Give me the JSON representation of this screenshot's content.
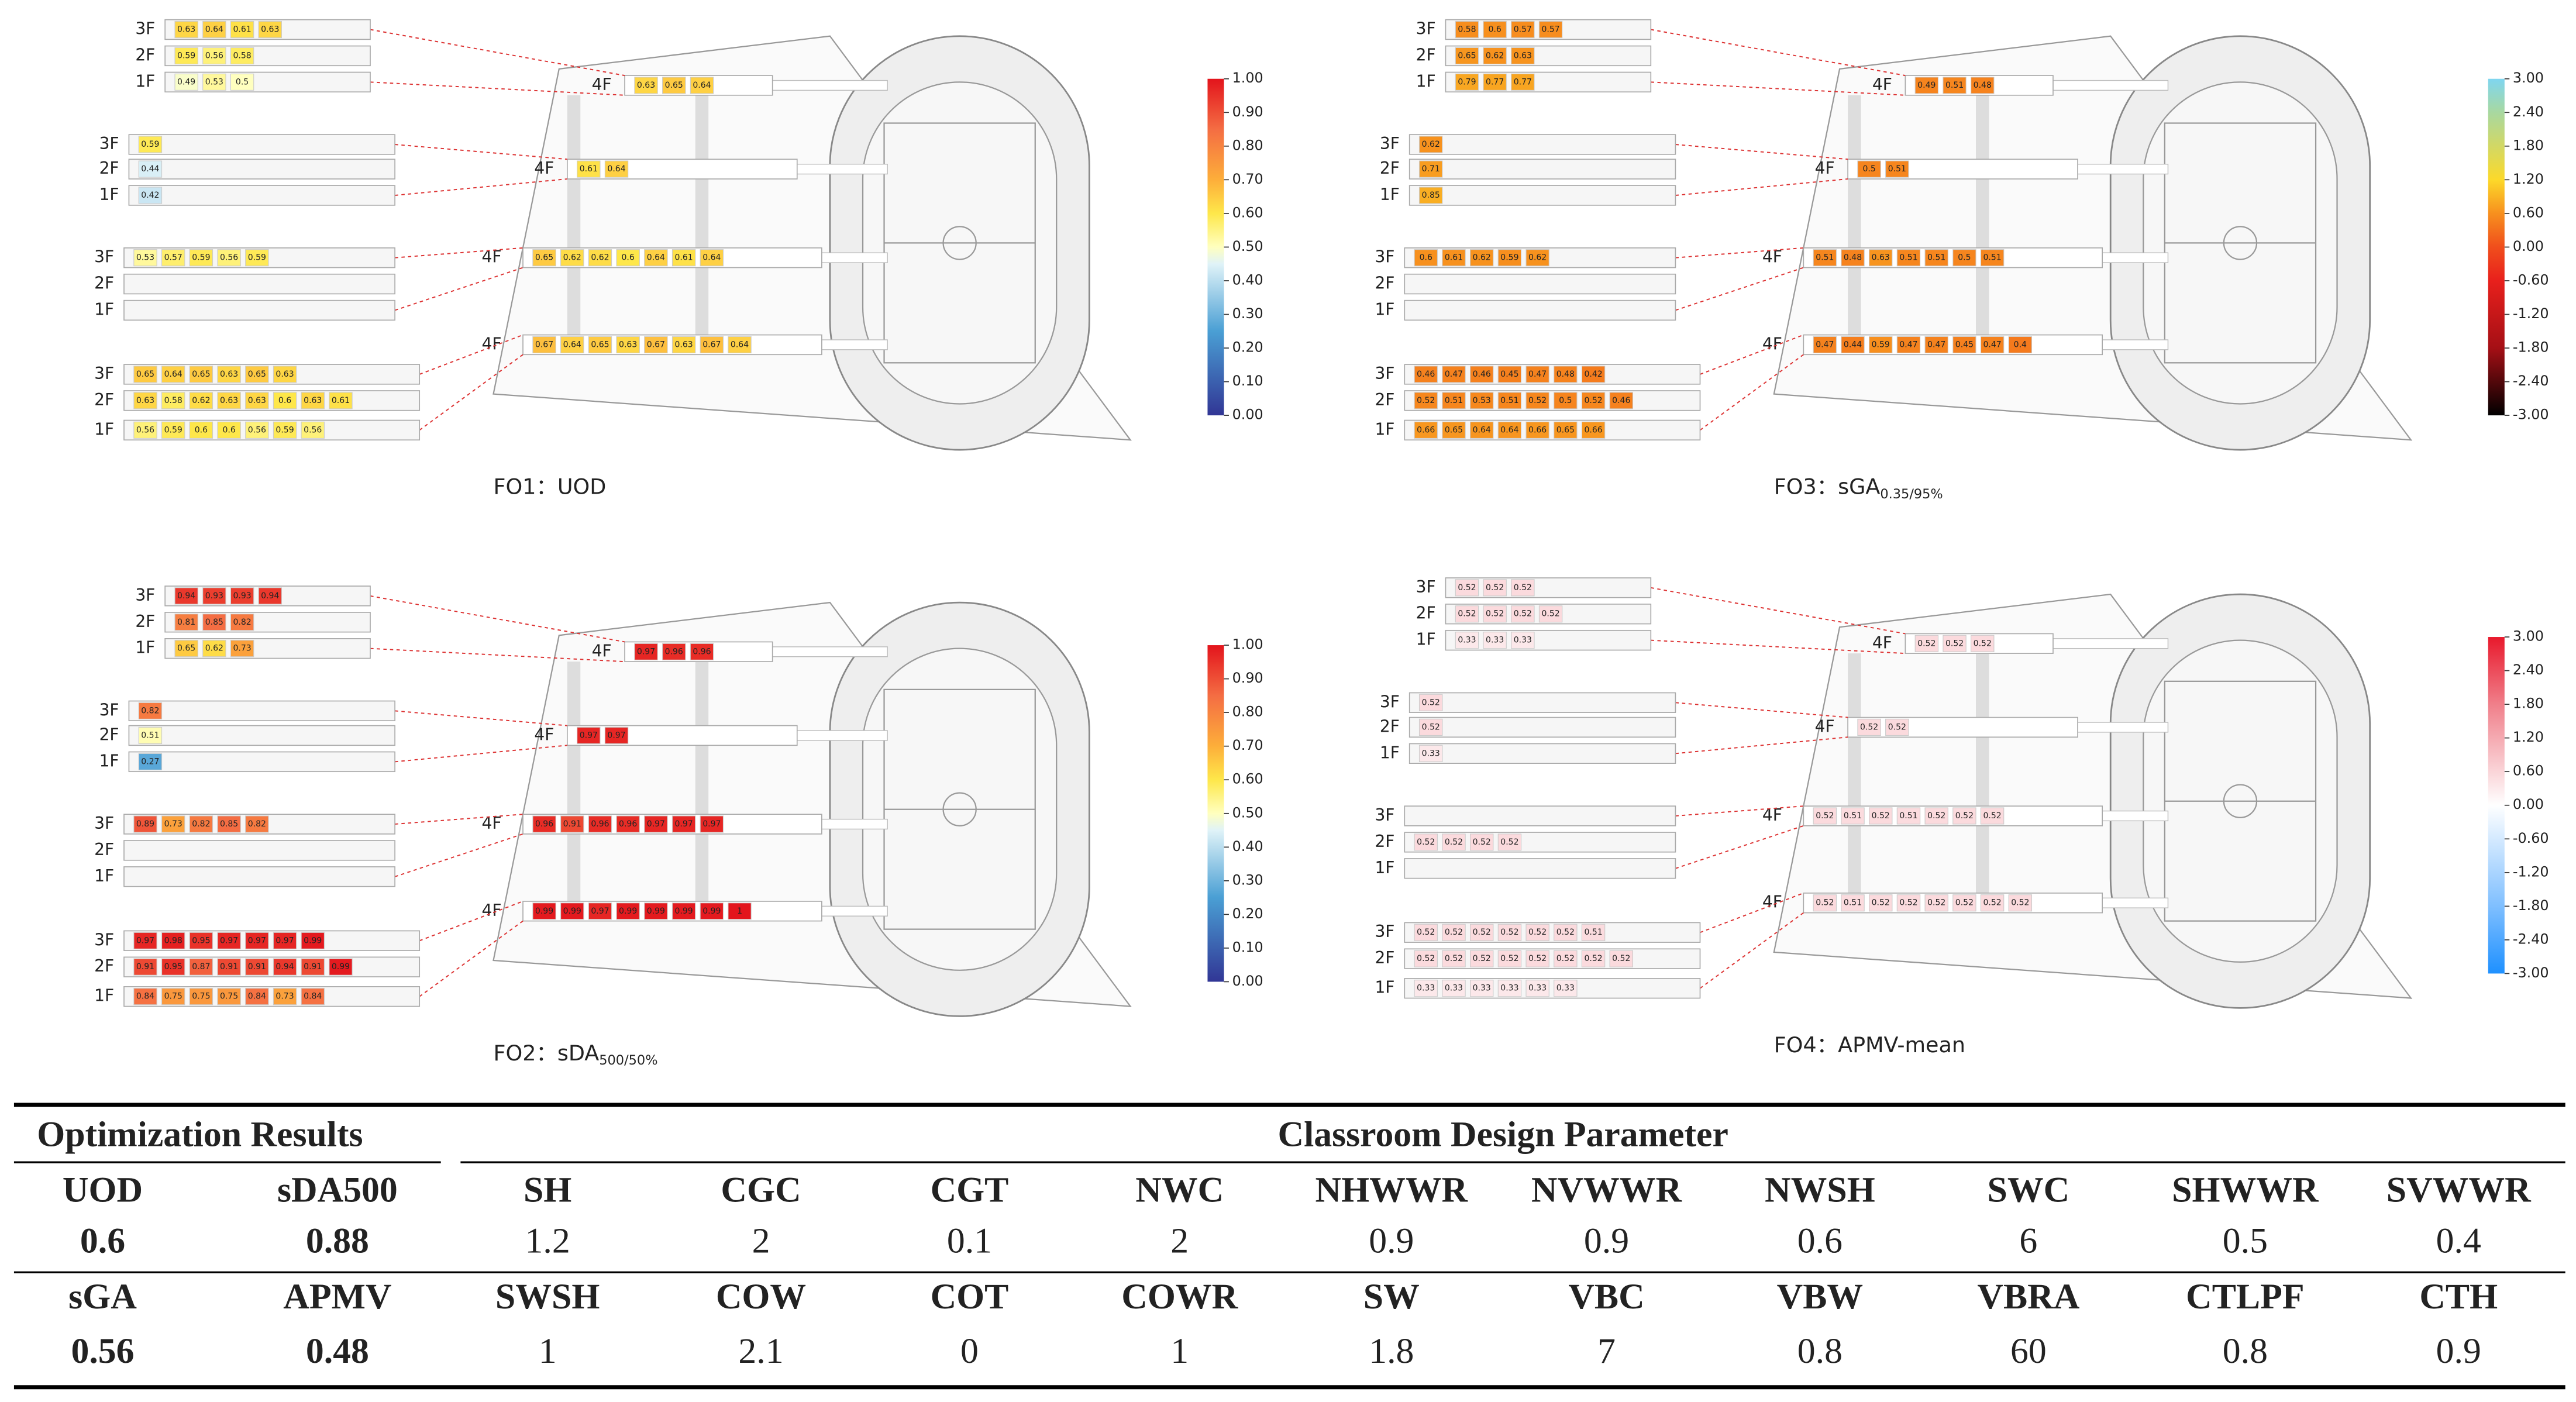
{
  "panels": [
    {
      "title": "FO1：UOD",
      "colormap": "jet",
      "colorbar": [
        "1.00",
        "0.90",
        "0.80",
        "0.70",
        "0.60",
        "0.50",
        "0.40",
        "0.30",
        "0.20",
        "0.10",
        "0.00"
      ],
      "levels": [
        {
          "tag": "4F",
          "main": [
            0.63,
            0.65,
            0.64
          ],
          "inset": [
            {
              "floor": "3F",
              "values": [
                0.63,
                0.64,
                0.61,
                0.63
              ]
            },
            {
              "floor": "2F",
              "values": [
                0.59,
                0.56,
                0.58
              ]
            },
            {
              "floor": "1F",
              "values": [
                0.49,
                0.53,
                0.5
              ]
            }
          ]
        },
        {
          "tag": "4F",
          "main": [
            0.61,
            0.64
          ],
          "inset": [
            {
              "floor": "3F",
              "values": [
                0.59
              ]
            },
            {
              "floor": "2F",
              "values": [
                0.44
              ]
            },
            {
              "floor": "1F",
              "values": [
                0.42
              ]
            }
          ]
        },
        {
          "tag": "4F",
          "main": [
            0.65,
            0.62,
            0.62,
            0.6,
            0.64,
            0.61,
            0.64
          ],
          "inset": [
            {
              "floor": "3F",
              "values": [
                0.53,
                0.57,
                0.59,
                0.56,
                0.59
              ]
            },
            {
              "floor": "2F",
              "values": []
            },
            {
              "floor": "1F",
              "values": []
            }
          ]
        },
        {
          "tag": "4F",
          "main": [
            0.67,
            0.64,
            0.65,
            0.63,
            0.67,
            0.63,
            0.67,
            0.64
          ],
          "inset": [
            {
              "floor": "3F",
              "values": [
                0.65,
                0.64,
                0.65,
                0.63,
                0.65,
                0.63
              ]
            },
            {
              "floor": "2F",
              "values": [
                0.63,
                0.58,
                0.62,
                0.63,
                0.63,
                0.6,
                0.63,
                0.61
              ]
            },
            {
              "floor": "1F",
              "values": [
                0.56,
                0.59,
                0.6,
                0.6,
                0.56,
                0.59,
                0.56
              ]
            }
          ]
        }
      ]
    },
    {
      "title": "FO3：sGA",
      "title_sub": "0.35/95%",
      "colormap": "heat",
      "colorbar": [
        "3.00",
        "2.40",
        "1.80",
        "1.20",
        "0.60",
        "0.00",
        "-0.60",
        "-1.20",
        "-1.80",
        "-2.40",
        "-3.00"
      ],
      "levels": [
        {
          "tag": "4F",
          "main": [
            0.49,
            0.51,
            0.48
          ],
          "inset": [
            {
              "floor": "3F",
              "values": [
                0.58,
                0.6,
                0.57,
                0.57
              ]
            },
            {
              "floor": "2F",
              "values": [
                0.65,
                0.62,
                0.63
              ]
            },
            {
              "floor": "1F",
              "values": [
                0.79,
                0.77,
                0.77
              ]
            }
          ]
        },
        {
          "tag": "4F",
          "main": [
            0.5,
            0.51
          ],
          "inset": [
            {
              "floor": "3F",
              "values": [
                0.62
              ]
            },
            {
              "floor": "2F",
              "values": [
                0.71
              ]
            },
            {
              "floor": "1F",
              "values": [
                0.85
              ]
            }
          ]
        },
        {
          "tag": "4F",
          "main": [
            0.51,
            0.48,
            0.63,
            0.51,
            0.51,
            0.5,
            0.51
          ],
          "inset": [
            {
              "floor": "3F",
              "values": [
                0.6,
                0.61,
                0.62,
                0.59,
                0.62
              ]
            },
            {
              "floor": "2F",
              "values": []
            },
            {
              "floor": "1F",
              "values": []
            }
          ]
        },
        {
          "tag": "4F",
          "main": [
            0.47,
            0.44,
            0.59,
            0.47,
            0.47,
            0.45,
            0.47,
            0.4
          ],
          "inset": [
            {
              "floor": "3F",
              "values": [
                0.46,
                0.47,
                0.46,
                0.45,
                0.47,
                0.48,
                0.42
              ]
            },
            {
              "floor": "2F",
              "values": [
                0.52,
                0.51,
                0.53,
                0.51,
                0.52,
                0.5,
                0.52,
                0.46
              ]
            },
            {
              "floor": "1F",
              "values": [
                0.66,
                0.65,
                0.64,
                0.64,
                0.66,
                0.65,
                0.66
              ]
            }
          ]
        }
      ]
    },
    {
      "title": "FO2：sDA",
      "title_sub": "500/50%",
      "colormap": "jet",
      "colorbar": [
        "1.00",
        "0.90",
        "0.80",
        "0.70",
        "0.60",
        "0.50",
        "0.40",
        "0.30",
        "0.20",
        "0.10",
        "0.00"
      ],
      "levels": [
        {
          "tag": "4F",
          "main": [
            0.97,
            0.96,
            0.96
          ],
          "inset": [
            {
              "floor": "3F",
              "values": [
                0.94,
                0.93,
                0.93,
                0.94
              ]
            },
            {
              "floor": "2F",
              "values": [
                0.81,
                0.85,
                0.82
              ]
            },
            {
              "floor": "1F",
              "values": [
                0.65,
                0.62,
                0.73
              ]
            }
          ]
        },
        {
          "tag": "4F",
          "main": [
            0.97,
            0.97
          ],
          "inset": [
            {
              "floor": "3F",
              "values": [
                0.82
              ]
            },
            {
              "floor": "2F",
              "values": [
                0.51
              ]
            },
            {
              "floor": "1F",
              "values": [
                0.27
              ]
            }
          ]
        },
        {
          "tag": "4F",
          "main": [
            0.96,
            0.91,
            0.96,
            0.96,
            0.97,
            0.97,
            0.97
          ],
          "inset": [
            {
              "floor": "3F",
              "values": [
                0.89,
                0.73,
                0.82,
                0.85,
                0.82
              ]
            },
            {
              "floor": "2F",
              "values": []
            },
            {
              "floor": "1F",
              "values": []
            }
          ]
        },
        {
          "tag": "4F",
          "main": [
            0.99,
            0.99,
            0.97,
            0.99,
            0.99,
            0.99,
            0.99,
            1
          ],
          "inset": [
            {
              "floor": "3F",
              "values": [
                0.97,
                0.98,
                0.95,
                0.97,
                0.97,
                0.97,
                0.99
              ]
            },
            {
              "floor": "2F",
              "values": [
                0.91,
                0.95,
                0.87,
                0.91,
                0.91,
                0.94,
                0.91,
                0.99
              ]
            },
            {
              "floor": "1F",
              "values": [
                0.84,
                0.75,
                0.75,
                0.75,
                0.84,
                0.73,
                0.84
              ]
            }
          ]
        }
      ]
    },
    {
      "title": "FO4：APMV-mean",
      "colormap": "diverging",
      "colorbar": [
        "3.00",
        "2.40",
        "1.80",
        "1.20",
        "0.60",
        "0.00",
        "-0.60",
        "-1.20",
        "-1.80",
        "-2.40",
        "-3.00"
      ],
      "levels": [
        {
          "tag": "4F",
          "main": [
            0.52,
            0.52,
            0.52
          ],
          "inset": [
            {
              "floor": "3F",
              "values": [
                0.52,
                0.52,
                0.52
              ]
            },
            {
              "floor": "2F",
              "values": [
                0.52,
                0.52,
                0.52,
                0.52
              ]
            },
            {
              "floor": "1F",
              "values": [
                0.33,
                0.33,
                0.33
              ]
            }
          ]
        },
        {
          "tag": "4F",
          "main": [
            0.52,
            0.52
          ],
          "inset": [
            {
              "floor": "3F",
              "values": [
                0.52
              ]
            },
            {
              "floor": "2F",
              "values": [
                0.52
              ]
            },
            {
              "floor": "1F",
              "values": [
                0.33
              ]
            }
          ]
        },
        {
          "tag": "4F",
          "main": [
            0.52,
            0.51,
            0.52,
            0.51,
            0.52,
            0.52,
            0.52
          ],
          "inset": [
            {
              "floor": "3F",
              "values": []
            },
            {
              "floor": "2F",
              "values": [
                0.52,
                0.52,
                0.52,
                0.52
              ]
            },
            {
              "floor": "1F",
              "values": []
            }
          ]
        },
        {
          "tag": "4F",
          "main": [
            0.52,
            0.51,
            0.52,
            0.52,
            0.52,
            0.52,
            0.52,
            0.52
          ],
          "inset": [
            {
              "floor": "3F",
              "values": [
                0.52,
                0.52,
                0.52,
                0.52,
                0.52,
                0.52,
                0.51
              ]
            },
            {
              "floor": "2F",
              "values": [
                0.52,
                0.52,
                0.52,
                0.52,
                0.52,
                0.52,
                0.52,
                0.52
              ]
            },
            {
              "floor": "1F",
              "values": [
                0.33,
                0.33,
                0.33,
                0.33,
                0.33,
                0.33
              ]
            }
          ]
        }
      ]
    }
  ],
  "table": {
    "group_headers": [
      "Optimization Results",
      "Classroom Design Parameter"
    ],
    "rows": [
      [
        "UOD",
        "sDA500",
        "SH",
        "CGC",
        "CGT",
        "NWC",
        "NHWWR",
        "NVWWR",
        "NWSH",
        "SWC",
        "SHWWR",
        "SVWWR"
      ],
      [
        0.6,
        0.88,
        1.2,
        2,
        0.1,
        2,
        0.9,
        0.9,
        0.6,
        6,
        0.5,
        0.4
      ],
      [
        "sGA",
        "APMV",
        "SWSH",
        "COW",
        "COT",
        "COWR",
        "SW",
        "VBC",
        "VBW",
        "VBRA",
        "CTLPF",
        "CTH"
      ],
      [
        0.56,
        0.48,
        1,
        2.1,
        0,
        1,
        1.8,
        7,
        0.8,
        60,
        0.8,
        0.9
      ]
    ]
  }
}
